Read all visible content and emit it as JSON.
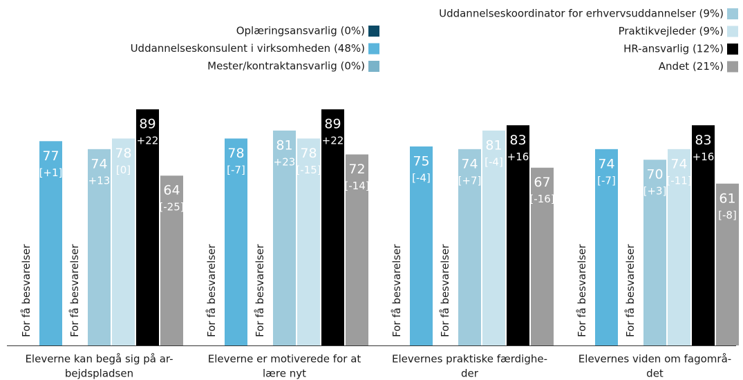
{
  "chart_data": {
    "type": "bar",
    "categories": [
      [
        "Eleverne kan begå sig på ar-",
        "bejdspladsen"
      ],
      [
        "Eleverne er motiverede for at",
        "lære nyt"
      ],
      [
        "Elevernes praktiske færdighe-",
        "der"
      ],
      [
        "Elevernes viden om fagområ-",
        "det"
      ]
    ],
    "ylim": [
      0,
      100
    ],
    "no_data_label": "For få besvarelser",
    "series": [
      {
        "name": "Oplæringsansvarlig (0%)",
        "color": "#0b4a66",
        "values": [
          null,
          null,
          null,
          null
        ],
        "sub_labels": [
          null,
          null,
          null,
          null
        ]
      },
      {
        "name": "Uddannelseskonsulent i virksomheden (48%)",
        "color": "#5bb5dc",
        "values": [
          77,
          78,
          75,
          74
        ],
        "sub_labels": [
          "[+1]",
          "[-7]",
          "[-4]",
          "[-7]"
        ]
      },
      {
        "name": "Mester/kontraktansvarlig (0%)",
        "color": "#7ab3c9",
        "values": [
          null,
          null,
          null,
          null
        ],
        "sub_labels": [
          null,
          null,
          null,
          null
        ]
      },
      {
        "name": "Uddannelseskoordinator for erhvervsuddannelser (9%)",
        "color": "#9fcbdc",
        "values": [
          74,
          81,
          74,
          70
        ],
        "sub_labels": [
          "+13",
          "+23",
          "[+7]",
          "[+3]"
        ]
      },
      {
        "name": "Praktikvejleder (9%)",
        "color": "#c8e3ed",
        "values": [
          78,
          78,
          81,
          74
        ],
        "sub_labels": [
          "[0]",
          "[-15]",
          "[-4]",
          "[-11]"
        ]
      },
      {
        "name": "HR-ansvarlig (12%)",
        "color": "#000000",
        "values": [
          89,
          89,
          83,
          83
        ],
        "sub_labels": [
          "+22",
          "+22",
          "+16",
          "+16"
        ]
      },
      {
        "name": "Andet (21%)",
        "color": "#9d9d9d",
        "values": [
          64,
          72,
          67,
          61
        ],
        "sub_labels": [
          "[-25]",
          "[-14]",
          "[-16]",
          "[-8]"
        ]
      }
    ]
  }
}
